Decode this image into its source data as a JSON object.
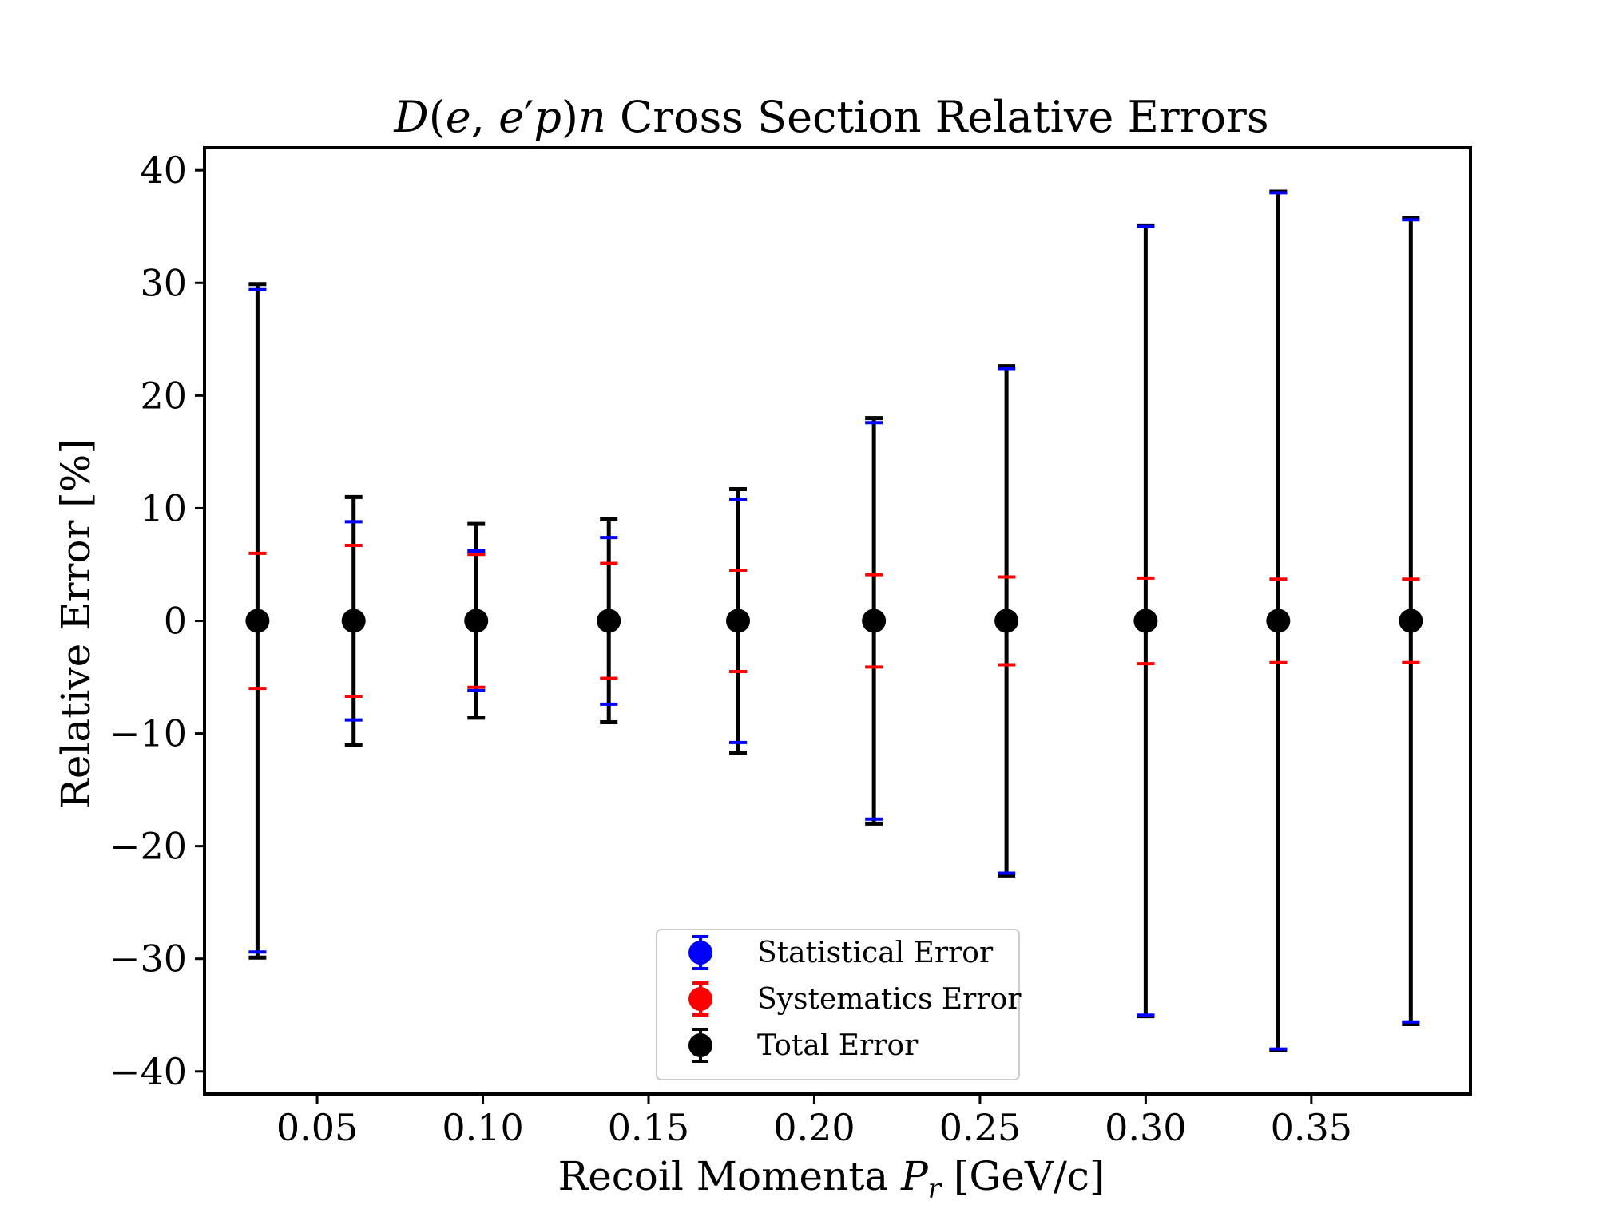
{
  "chart_data": {
    "type": "scatter",
    "title_parts": {
      "formula_D": "D",
      "formula_open": "(",
      "formula_e": "e",
      "formula_comma": ", ",
      "formula_e2": "e",
      "formula_prime": "′",
      "formula_p": "p",
      "formula_close": ")",
      "formula_n": "n",
      "rest": " Cross Section Relative Errors"
    },
    "xlabel_parts": {
      "text": "Recoil Momenta ",
      "symbol": "P",
      "subscript": "r",
      "unit": " [GeV/c]"
    },
    "ylabel": "Relative Error [%]",
    "xlim": [
      0.016,
      0.398
    ],
    "ylim": [
      -42,
      42
    ],
    "x_ticks": [
      {
        "value": 0.05,
        "label": "0.05"
      },
      {
        "value": 0.1,
        "label": "0.10"
      },
      {
        "value": 0.15,
        "label": "0.15"
      },
      {
        "value": 0.2,
        "label": "0.20"
      },
      {
        "value": 0.25,
        "label": "0.25"
      },
      {
        "value": 0.3,
        "label": "0.30"
      },
      {
        "value": 0.35,
        "label": "0.35"
      }
    ],
    "y_ticks": [
      {
        "value": 40,
        "label": "40"
      },
      {
        "value": 30,
        "label": "30"
      },
      {
        "value": 20,
        "label": "20"
      },
      {
        "value": 10,
        "label": "10"
      },
      {
        "value": 0,
        "label": "0"
      },
      {
        "value": -10,
        "label": "−10"
      },
      {
        "value": -20,
        "label": "−20"
      },
      {
        "value": -30,
        "label": "−30"
      },
      {
        "value": -40,
        "label": "−40"
      }
    ],
    "grid": false,
    "legend_position": "lower-center",
    "x": [
      0.032,
      0.061,
      0.098,
      0.138,
      0.177,
      0.218,
      0.258,
      0.3,
      0.34,
      0.38
    ],
    "y": [
      0,
      0,
      0,
      0,
      0,
      0,
      0,
      0,
      0,
      0
    ],
    "series": [
      {
        "name": "Statistical Error",
        "color": "#0000ff",
        "errors": [
          29.4,
          8.8,
          6.2,
          7.4,
          10.8,
          17.6,
          22.4,
          35.0,
          38.0,
          35.6
        ]
      },
      {
        "name": "Systematics Error",
        "color": "#ff0000",
        "errors": [
          6.0,
          6.7,
          5.9,
          5.1,
          4.5,
          4.1,
          3.9,
          3.8,
          3.7,
          3.7
        ]
      },
      {
        "name": "Total Error",
        "color": "#000000",
        "errors": [
          29.9,
          11.0,
          8.6,
          9.0,
          11.7,
          18.0,
          22.6,
          35.1,
          38.1,
          35.8
        ]
      }
    ]
  }
}
